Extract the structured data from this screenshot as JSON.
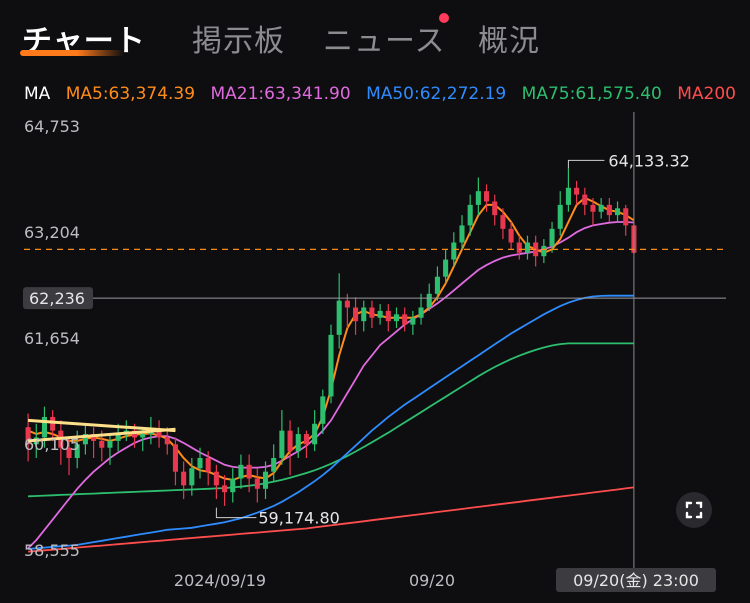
{
  "tabs": [
    {
      "label": "チャート",
      "active": true
    },
    {
      "label": "掲示板",
      "active": false
    },
    {
      "label": "ニュース",
      "active": false,
      "badge": "red-dot"
    },
    {
      "label": "概況",
      "active": false
    }
  ],
  "ma_legend": {
    "prefix": "MA",
    "items": [
      {
        "label": "MA5:63,374.39",
        "color": "#ff8c1a"
      },
      {
        "label": "MA21:63,341.90",
        "color": "#e06adf"
      },
      {
        "label": "MA50:62,272.19",
        "color": "#2f8cff"
      },
      {
        "label": "MA75:61,575.40",
        "color": "#2dbf6f"
      },
      {
        "label": "MA200",
        "color": "#ff4d4d"
      }
    ]
  },
  "price_axis": [
    "64,753",
    "63,204",
    "61,654",
    "60,105",
    "58,555"
  ],
  "current_price_label": "62,236",
  "annotations": {
    "high": "64,133.32",
    "low": "59,174.80"
  },
  "x_axis": [
    "2024/09/19",
    "09/20"
  ],
  "crosshair_time": "09/20(金) 23:00",
  "colors": {
    "bull": "#2dbf6f",
    "bear": "#e8384f",
    "ma5": "#ff8c1a",
    "ma21": "#e06adf",
    "ma50": "#2f8cff",
    "ma75": "#2dbf6f",
    "ma200": "#ff4d4d",
    "dashed_price": "#ff8c1a",
    "trendline": "#ffe08a"
  },
  "chart_data": {
    "type": "candlestick",
    "y_range": [
      58555,
      64753
    ],
    "current_price": 62236,
    "reference_price": 62950,
    "high_marker": 64133.32,
    "low_marker": 59174.8,
    "candles": [
      [
        60350,
        60100,
        60550,
        59850
      ],
      [
        60100,
        60200,
        60400,
        59900
      ],
      [
        60200,
        60500,
        60650,
        60050
      ],
      [
        60500,
        60300,
        60600,
        60150
      ],
      [
        60300,
        60050,
        60450,
        59800
      ],
      [
        60050,
        59900,
        60200,
        59650
      ],
      [
        59900,
        60100,
        60300,
        59750
      ],
      [
        60100,
        60250,
        60400,
        59950
      ],
      [
        60250,
        60150,
        60350,
        59900
      ],
      [
        60150,
        60050,
        60300,
        59850
      ],
      [
        60050,
        60150,
        60250,
        59800
      ],
      [
        60150,
        60250,
        60400,
        60000
      ],
      [
        60250,
        60300,
        60450,
        60150
      ],
      [
        60300,
        60200,
        60400,
        60050
      ],
      [
        60200,
        60250,
        60350,
        60000
      ],
      [
        60250,
        60300,
        60500,
        60100
      ],
      [
        60300,
        60200,
        60450,
        60050
      ],
      [
        60200,
        60100,
        60350,
        59950
      ],
      [
        60100,
        59700,
        60200,
        59500
      ],
      [
        59700,
        59500,
        59850,
        59300
      ],
      [
        59500,
        59750,
        59900,
        59350
      ],
      [
        59750,
        59900,
        60050,
        59600
      ],
      [
        59900,
        59700,
        60000,
        59500
      ],
      [
        59700,
        59500,
        59800,
        59300
      ],
      [
        59500,
        59400,
        59650,
        59200
      ],
      [
        59400,
        59600,
        59750,
        59250
      ],
      [
        59600,
        59800,
        59950,
        59450
      ],
      [
        59800,
        59600,
        59950,
        59400
      ],
      [
        59600,
        59450,
        59750,
        59250
      ],
      [
        59450,
        59700,
        59850,
        59300
      ],
      [
        59700,
        59900,
        60100,
        59550
      ],
      [
        59900,
        60300,
        60600,
        59800
      ],
      [
        60300,
        60000,
        60450,
        59650
      ],
      [
        60000,
        60250,
        60350,
        59900
      ],
      [
        60250,
        60100,
        60300,
        59900
      ],
      [
        60100,
        60400,
        60600,
        60000
      ],
      [
        60400,
        60800,
        60900,
        60250
      ],
      [
        60800,
        61700,
        61850,
        60700
      ],
      [
        61700,
        62200,
        62600,
        61500
      ],
      [
        62200,
        62100,
        62300,
        61800
      ],
      [
        62100,
        61900,
        62250,
        61700
      ],
      [
        61900,
        62100,
        62200,
        61750
      ],
      [
        62100,
        61950,
        62200,
        61800
      ],
      [
        61950,
        62050,
        62150,
        61850
      ],
      [
        62050,
        61900,
        62150,
        61750
      ],
      [
        61900,
        62000,
        62100,
        61800
      ],
      [
        62000,
        61850,
        62100,
        61750
      ],
      [
        61850,
        61950,
        62050,
        61700
      ],
      [
        61950,
        62100,
        62300,
        61850
      ],
      [
        62100,
        62300,
        62450,
        62050
      ],
      [
        62300,
        62550,
        62700,
        62200
      ],
      [
        62550,
        62800,
        62950,
        62450
      ],
      [
        62800,
        63050,
        63200,
        62700
      ],
      [
        63050,
        63300,
        63450,
        62950
      ],
      [
        63300,
        63600,
        63750,
        63150
      ],
      [
        63600,
        63800,
        64000,
        63450
      ],
      [
        63800,
        63650,
        63900,
        63500
      ],
      [
        63650,
        63450,
        63750,
        63300
      ],
      [
        63450,
        63250,
        63550,
        63100
      ],
      [
        63250,
        63050,
        63350,
        62950
      ],
      [
        63050,
        62900,
        63150,
        62800
      ],
      [
        62900,
        63050,
        63150,
        62800
      ],
      [
        63050,
        62850,
        63150,
        62700
      ],
      [
        62850,
        63000,
        63100,
        62750
      ],
      [
        63000,
        63250,
        63350,
        62900
      ],
      [
        63250,
        63600,
        63800,
        63150
      ],
      [
        63600,
        63850,
        64133,
        63500
      ],
      [
        63850,
        63750,
        63950,
        63600
      ],
      [
        63750,
        63600,
        63850,
        63450
      ],
      [
        63600,
        63500,
        63700,
        63300
      ],
      [
        63500,
        63600,
        63700,
        63400
      ],
      [
        63600,
        63450,
        63700,
        63350
      ],
      [
        63450,
        63550,
        63650,
        63350
      ],
      [
        63550,
        63300,
        63600,
        63150
      ],
      [
        63300,
        62900,
        63350,
        62880
      ]
    ],
    "ma5": [
      60300,
      60250,
      60280,
      60250,
      60200,
      60150,
      60150,
      60180,
      60200,
      60180,
      60150,
      60180,
      60220,
      60240,
      60250,
      60260,
      60230,
      60180,
      60050,
      59900,
      59780,
      59720,
      59700,
      59650,
      59600,
      59580,
      59620,
      59650,
      59620,
      59600,
      59680,
      59850,
      60000,
      60100,
      60150,
      60250,
      60500,
      60900,
      61400,
      61800,
      62000,
      62050,
      62000,
      61980,
      61950,
      61950,
      61950,
      61950,
      62000,
      62100,
      62250,
      62450,
      62700,
      62950,
      63200,
      63450,
      63600,
      63600,
      63500,
      63350,
      63150,
      63000,
      62950,
      62900,
      62950,
      63100,
      63350,
      63600,
      63700,
      63650,
      63580,
      63520,
      63500,
      63450,
      63374
    ],
    "ma21": [
      58580,
      58700,
      58850,
      59000,
      59150,
      59300,
      59450,
      59580,
      59700,
      59800,
      59900,
      59980,
      60050,
      60120,
      60170,
      60200,
      60220,
      60220,
      60180,
      60120,
      60050,
      59980,
      59920,
      59860,
      59800,
      59770,
      59760,
      59760,
      59760,
      59770,
      59800,
      59860,
      59930,
      60000,
      60080,
      60180,
      60300,
      60450,
      60650,
      60850,
      61050,
      61250,
      61400,
      61550,
      61650,
      61750,
      61850,
      61930,
      62000,
      62080,
      62160,
      62250,
      62350,
      62450,
      62550,
      62650,
      62720,
      62780,
      62830,
      62860,
      62880,
      62900,
      62920,
      62950,
      62990,
      63050,
      63120,
      63200,
      63260,
      63300,
      63320,
      63340,
      63350,
      63350,
      63342
    ],
    "ma50": [
      58570,
      58580,
      58590,
      58600,
      58610,
      58620,
      58630,
      58650,
      58670,
      58690,
      58710,
      58730,
      58750,
      58770,
      58790,
      58810,
      58830,
      58850,
      58860,
      58870,
      58880,
      58900,
      58920,
      58940,
      58960,
      58990,
      59020,
      59060,
      59100,
      59150,
      59200,
      59260,
      59330,
      59400,
      59480,
      59560,
      59650,
      59750,
      59860,
      59970,
      60080,
      60190,
      60300,
      60400,
      60500,
      60590,
      60680,
      60760,
      60840,
      60920,
      61000,
      61080,
      61160,
      61240,
      61320,
      61400,
      61480,
      61560,
      61640,
      61720,
      61790,
      61860,
      61930,
      62000,
      62060,
      62120,
      62170,
      62210,
      62240,
      62260,
      62270,
      62272,
      62272,
      62272,
      62272
    ],
    "ma75": [
      59340,
      59345,
      59350,
      59355,
      59360,
      59365,
      59370,
      59375,
      59380,
      59385,
      59390,
      59395,
      59400,
      59405,
      59410,
      59415,
      59420,
      59425,
      59430,
      59435,
      59440,
      59445,
      59450,
      59455,
      59460,
      59470,
      59480,
      59495,
      59510,
      59530,
      59555,
      59580,
      59610,
      59645,
      59680,
      59720,
      59765,
      59815,
      59870,
      59930,
      59995,
      60060,
      60130,
      60200,
      60270,
      60345,
      60420,
      60495,
      60570,
      60645,
      60720,
      60795,
      60870,
      60945,
      61020,
      61095,
      61165,
      61230,
      61290,
      61345,
      61395,
      61440,
      61480,
      61515,
      61545,
      61565,
      61575,
      61575,
      61575,
      61575,
      61575,
      61575,
      61575,
      61575,
      61575
    ],
    "ma200": [
      58530,
      58540,
      58550,
      58560,
      58570,
      58580,
      58590,
      58600,
      58610,
      58620,
      58630,
      58640,
      58650,
      58660,
      58670,
      58680,
      58690,
      58700,
      58710,
      58720,
      58730,
      58740,
      58750,
      58760,
      58770,
      58780,
      58790,
      58800,
      58810,
      58820,
      58830,
      58840,
      58850,
      58860,
      58870,
      58885,
      58900,
      58915,
      58930,
      58945,
      58960,
      58975,
      58990,
      59005,
      59020,
      59035,
      59050,
      59065,
      59080,
      59095,
      59110,
      59125,
      59140,
      59155,
      59170,
      59185,
      59200,
      59215,
      59230,
      59245,
      59260,
      59275,
      59290,
      59305,
      59320,
      59335,
      59350,
      59365,
      59380,
      59395,
      59410,
      59425,
      59440,
      59455,
      59470
    ]
  }
}
